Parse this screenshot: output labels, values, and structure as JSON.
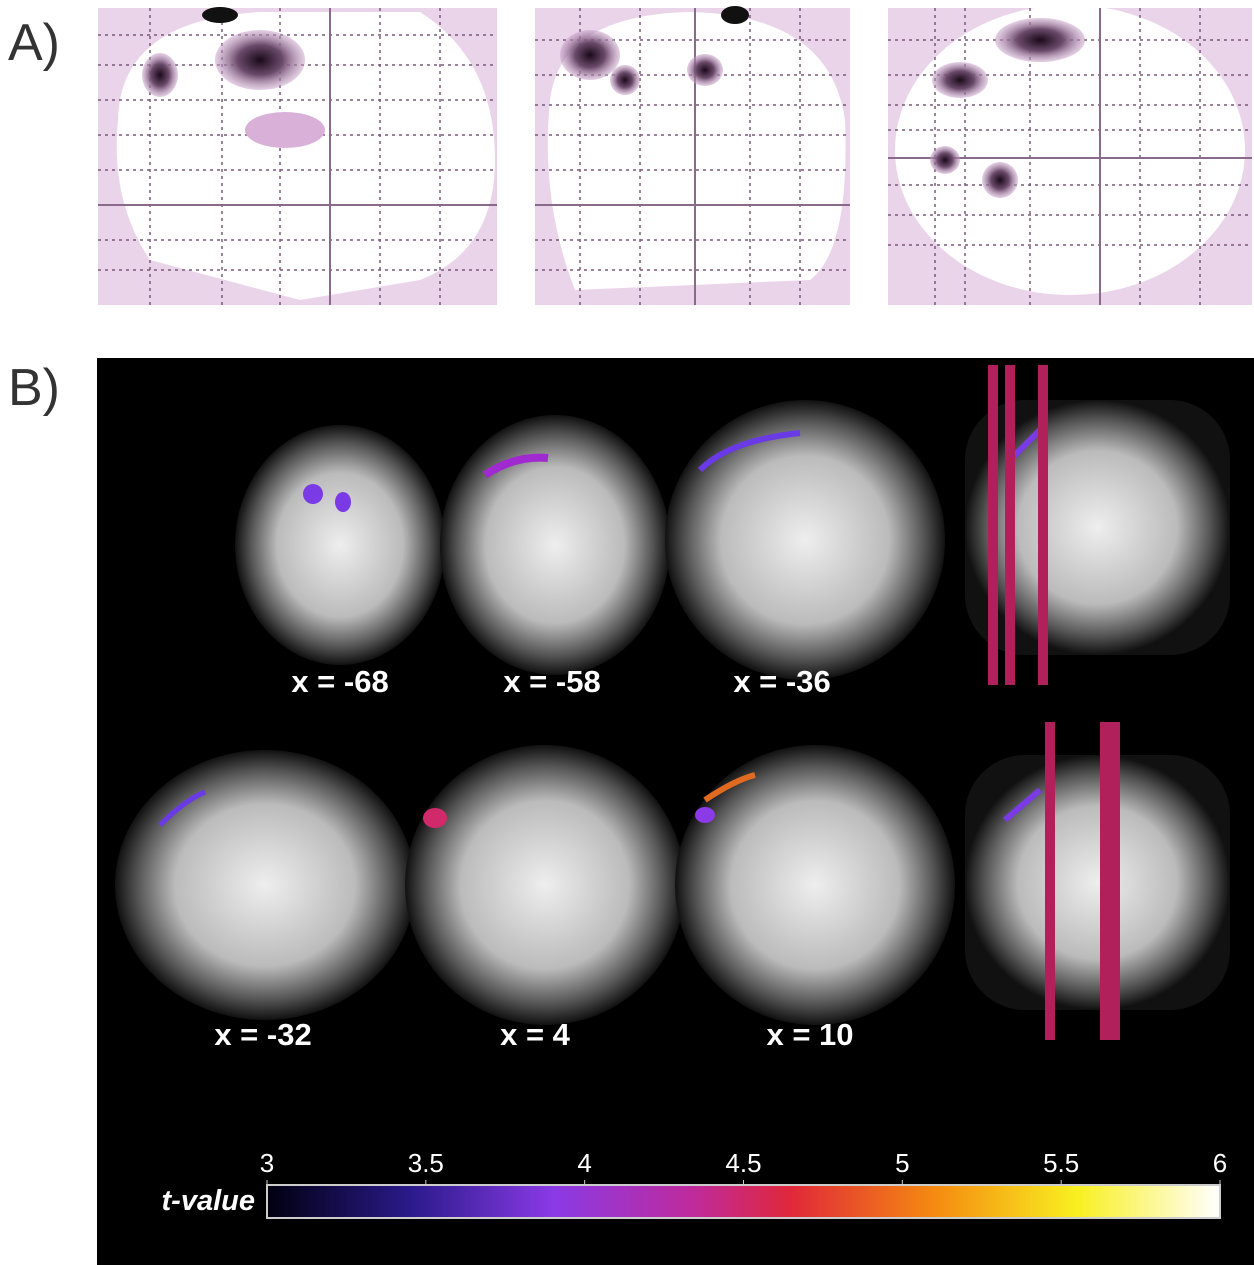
{
  "panel_a": {
    "label": "A)"
  },
  "panel_b": {
    "label": "B)",
    "slices": [
      "x = -68",
      "x = -58",
      "x = -36",
      "x = -32",
      "x = 4",
      "x = 10"
    ],
    "colorbar": {
      "label": "t-value",
      "lim": [
        3,
        6
      ],
      "ticks": [
        3,
        3.5,
        4,
        4.5,
        5,
        5.5,
        6
      ]
    }
  }
}
